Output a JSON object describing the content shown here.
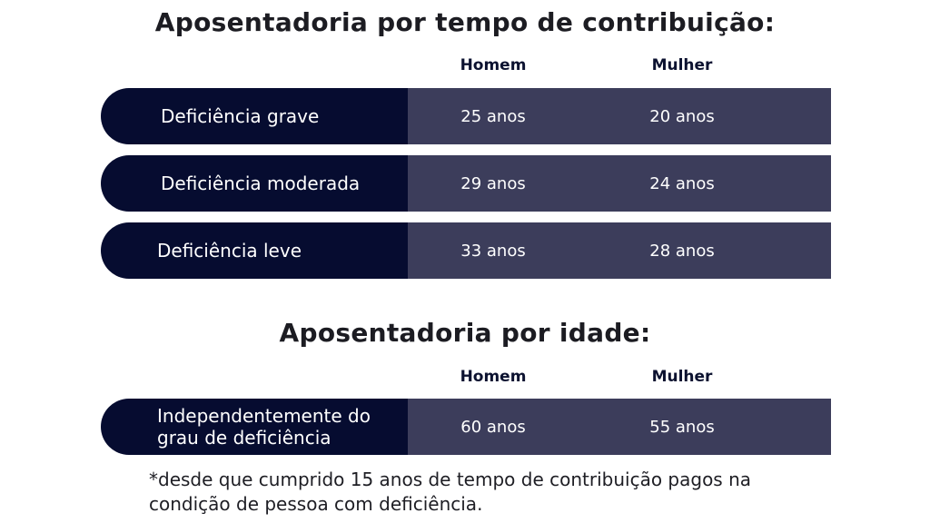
{
  "section1": {
    "title": "Aposentadoria por tempo de contribuição:",
    "col_homem": "Homem",
    "col_mulher": "Mulher",
    "rows": [
      {
        "label": "Deficiência grave",
        "homem": "25 anos",
        "mulher": "20 anos"
      },
      {
        "label": "Deficiência moderada",
        "homem": "29 anos",
        "mulher": "24 anos"
      },
      {
        "label": "Deficiência leve",
        "homem": "33 anos",
        "mulher": "28 anos"
      }
    ]
  },
  "section2": {
    "title": "Aposentadoria por idade:",
    "col_homem": "Homem",
    "col_mulher": "Mulher",
    "rows": [
      {
        "label_line1": "Independentemente do",
        "label_line2": "grau de deficiência",
        "homem": "60 anos",
        "mulher": "55 anos"
      }
    ]
  },
  "footnote": {
    "marker": "*",
    "line1": "desde que cumprido 15 anos de tempo de contribuição pagos na",
    "line2": "condição de pessoa com deficiência."
  },
  "colors": {
    "label_bg": "#060c30",
    "value_bg": "#3c3d5b",
    "title_text": "#1c1c22",
    "header_text": "#0c1230"
  }
}
